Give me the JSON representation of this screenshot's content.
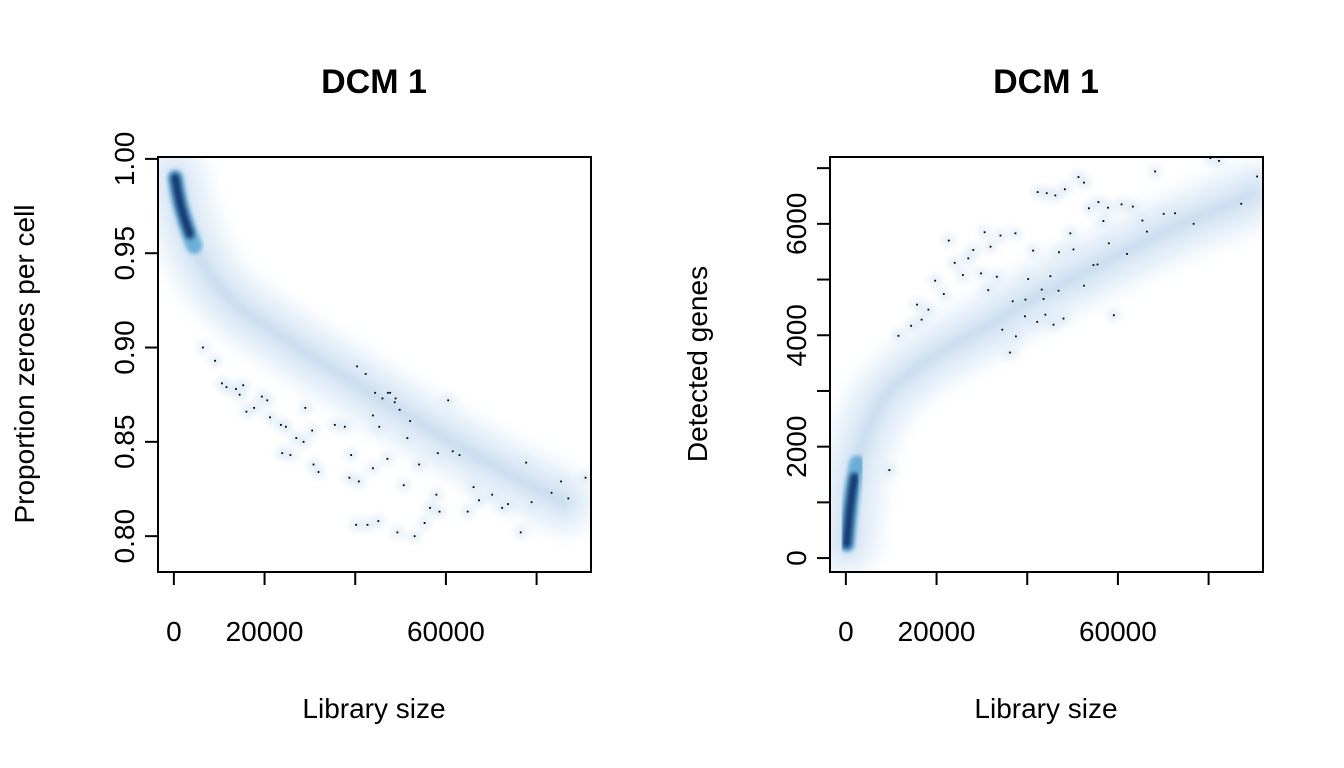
{
  "colors": {
    "density_low": "#ddeaf6",
    "density_mid": "#6baed6",
    "density_high": "#08306b",
    "point": "#000000",
    "axis": "#000000",
    "background": "#ffffff"
  },
  "chart_data": [
    {
      "type": "scatter",
      "style": "smoothed density scatter (smoothScatter)",
      "title": "DCM 1",
      "xlabel": "Library size",
      "ylabel": "Proportion zeroes per cell",
      "xlim": [
        -3500,
        92000
      ],
      "ylim": [
        0.781,
        1.001
      ],
      "x_ticks": [
        0,
        20000,
        40000,
        60000,
        80000
      ],
      "x_tick_labels": [
        "0",
        "20000",
        "",
        "60000",
        ""
      ],
      "y_ticks": [
        0.8,
        0.85,
        0.9,
        0.95,
        1.0
      ],
      "y_tick_labels": [
        "0.80",
        "0.85",
        "0.90",
        "0.95",
        "1.00"
      ],
      "grid": false,
      "density_core": [
        [
          300,
          0.99
        ],
        [
          800,
          0.983
        ],
        [
          1500,
          0.975
        ],
        [
          2500,
          0.967
        ],
        [
          3500,
          0.96
        ],
        [
          4500,
          0.954
        ],
        [
          6000,
          0.946
        ],
        [
          8000,
          0.938
        ],
        [
          11000,
          0.929
        ],
        [
          15000,
          0.92
        ],
        [
          20000,
          0.912
        ],
        [
          25000,
          0.904
        ],
        [
          30000,
          0.896
        ],
        [
          36000,
          0.887
        ],
        [
          42000,
          0.878
        ],
        [
          48000,
          0.869
        ],
        [
          55000,
          0.859
        ],
        [
          62000,
          0.849
        ],
        [
          70000,
          0.838
        ],
        [
          78000,
          0.828
        ],
        [
          86000,
          0.818
        ]
      ],
      "outliers": {
        "x": [
          6400,
          9100,
          10600,
          11600,
          13700,
          15300,
          14500,
          16000,
          17700,
          19400,
          20600,
          21200,
          23600,
          24700,
          27000,
          28600,
          29000,
          23900,
          25700,
          30800,
          31900,
          35500,
          37700,
          39100,
          38700,
          40800,
          40400,
          42300,
          43900,
          45300,
          46000,
          44400,
          47200,
          47700,
          48900,
          49800,
          48700,
          52100,
          51500,
          50700,
          54100,
          58200,
          58600,
          57900,
          60500,
          61500,
          63000,
          66100,
          67300,
          70200,
          72400,
          73700,
          76500,
          77700,
          78900,
          83300,
          85400,
          87000,
          90800,
          40200,
          42700,
          45100,
          49300,
          53100,
          55300,
          56500,
          43900,
          30500,
          47100,
          64800
        ],
        "y": [
          0.9,
          0.893,
          0.881,
          0.879,
          0.878,
          0.88,
          0.875,
          0.866,
          0.868,
          0.874,
          0.872,
          0.863,
          0.859,
          0.858,
          0.852,
          0.85,
          0.868,
          0.844,
          0.843,
          0.838,
          0.834,
          0.859,
          0.858,
          0.843,
          0.831,
          0.829,
          0.89,
          0.886,
          0.864,
          0.858,
          0.873,
          0.876,
          0.876,
          0.876,
          0.873,
          0.867,
          0.871,
          0.861,
          0.852,
          0.827,
          0.838,
          0.844,
          0.813,
          0.822,
          0.872,
          0.845,
          0.843,
          0.826,
          0.819,
          0.822,
          0.815,
          0.817,
          0.802,
          0.839,
          0.818,
          0.823,
          0.829,
          0.82,
          0.831,
          0.806,
          0.806,
          0.808,
          0.802,
          0.8,
          0.807,
          0.815,
          0.836,
          0.856,
          0.841,
          0.813
        ]
      }
    },
    {
      "type": "scatter",
      "style": "smoothed density scatter (smoothScatter)",
      "title": "DCM 1",
      "xlabel": "Library size",
      "ylabel": "Detected genes",
      "xlim": [
        -3500,
        92000
      ],
      "ylim": [
        -250,
        7200
      ],
      "x_ticks": [
        0,
        20000,
        40000,
        60000,
        80000
      ],
      "x_tick_labels": [
        "0",
        "20000",
        "",
        "60000",
        ""
      ],
      "y_ticks": [
        0,
        1000,
        2000,
        3000,
        4000,
        5000,
        6000,
        7000
      ],
      "y_tick_labels": [
        "0",
        "",
        "2000",
        "",
        "4000",
        "",
        "6000",
        ""
      ],
      "grid": false,
      "density_core": [
        [
          200,
          250
        ],
        [
          400,
          450
        ],
        [
          700,
          700
        ],
        [
          1000,
          950
        ],
        [
          1400,
          1200
        ],
        [
          1900,
          1450
        ],
        [
          2500,
          1700
        ],
        [
          3200,
          1950
        ],
        [
          4200,
          2200
        ],
        [
          5500,
          2450
        ],
        [
          7000,
          2700
        ],
        [
          9000,
          2950
        ],
        [
          11500,
          3150
        ],
        [
          14500,
          3350
        ],
        [
          18000,
          3550
        ],
        [
          22000,
          3750
        ],
        [
          26500,
          3950
        ],
        [
          31000,
          4150
        ],
        [
          36000,
          4400
        ],
        [
          41000,
          4650
        ],
        [
          46000,
          4850
        ],
        [
          52000,
          5100
        ],
        [
          58000,
          5350
        ],
        [
          64000,
          5600
        ],
        [
          70000,
          5850
        ],
        [
          77000,
          6100
        ],
        [
          85000,
          6350
        ],
        [
          90000,
          6550
        ]
      ],
      "outliers": {
        "x": [
          9600,
          11600,
          14400,
          15700,
          16700,
          18200,
          19700,
          21600,
          22700,
          24000,
          25800,
          27000,
          28100,
          29800,
          30600,
          31400,
          31900,
          33300,
          34100,
          36200,
          37400,
          39600,
          40200,
          41300,
          42300,
          43200,
          44300,
          45100,
          46200,
          47000,
          48300,
          49500,
          50200,
          51300,
          52500,
          53600,
          54600,
          55700,
          56800,
          57800,
          59100,
          60800,
          62000,
          63300,
          65400,
          66400,
          68200,
          70100,
          72600,
          76700,
          80400,
          82300,
          87200,
          90700,
          42200,
          44000,
          45800,
          37500,
          34500,
          58000,
          55500,
          52500,
          48000,
          43600,
          39500,
          36800,
          46900
        ],
        "y": [
          1580,
          3990,
          4170,
          4550,
          4280,
          4460,
          4980,
          4740,
          5700,
          5300,
          5080,
          5380,
          5530,
          5110,
          5850,
          4810,
          5590,
          5050,
          5790,
          3690,
          5830,
          4640,
          5010,
          5520,
          6570,
          4820,
          6550,
          5060,
          6510,
          5490,
          6620,
          5830,
          5540,
          6840,
          6740,
          6280,
          5260,
          6390,
          6050,
          6290,
          4360,
          6350,
          5460,
          6310,
          6060,
          5860,
          6940,
          6180,
          6190,
          6000,
          7180,
          7130,
          6360,
          6850,
          4240,
          4370,
          4190,
          3980,
          4100,
          5650,
          5270,
          4890,
          4300,
          4650,
          4340,
          4610,
          4800
        ]
      }
    }
  ]
}
